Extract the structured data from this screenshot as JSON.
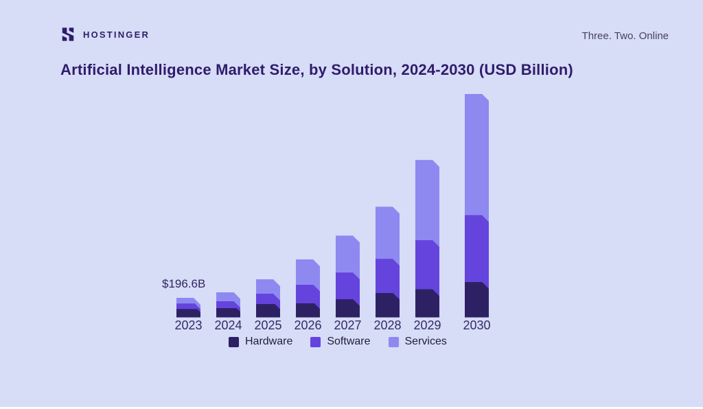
{
  "page": {
    "background_color": "#d7dcf7"
  },
  "header": {
    "brand": "HOSTINGER",
    "tagline": "Three. Two. Online"
  },
  "title": "Artificial Intelligence Market Size, by Solution, 2024-2030 (USD Billion)",
  "chart_data": {
    "type": "bar",
    "stacked": true,
    "title": "Artificial Intelligence Market Size, by Solution, 2024-2030 (USD Billion)",
    "unit": "USD Billion",
    "categories": [
      "2023",
      "2024",
      "2025",
      "2026",
      "2027",
      "2028",
      "2029",
      "2030"
    ],
    "series": [
      {
        "name": "Hardware",
        "color": "#2e2163",
        "values": [
          84.6,
          94,
          138,
          142,
          184,
          248,
          283,
          357
        ]
      },
      {
        "name": "Software",
        "color": "#6444dd",
        "values": [
          55.2,
          69,
          100,
          189,
          267,
          341,
          494,
          671
        ]
      },
      {
        "name": "Services",
        "color": "#8e89f0",
        "values": [
          56.8,
          92,
          145,
          252,
          371,
          523,
          805,
          1219
        ]
      }
    ],
    "totals_estimated": [
      196.6,
      255,
      383,
      583,
      822,
      1112,
      1582,
      2247
    ],
    "annotations": [
      {
        "text": "$196.6B",
        "category": "2023"
      }
    ],
    "legend_position": "bottom",
    "grid": false,
    "y_axis": "hidden",
    "ylim": [
      0,
      2300
    ]
  },
  "colors": {
    "background": "#d7dcf7",
    "brand_dark": "#2f1c6a",
    "hardware": "#2e2163",
    "software": "#6444dd",
    "services": "#8e89f0"
  }
}
